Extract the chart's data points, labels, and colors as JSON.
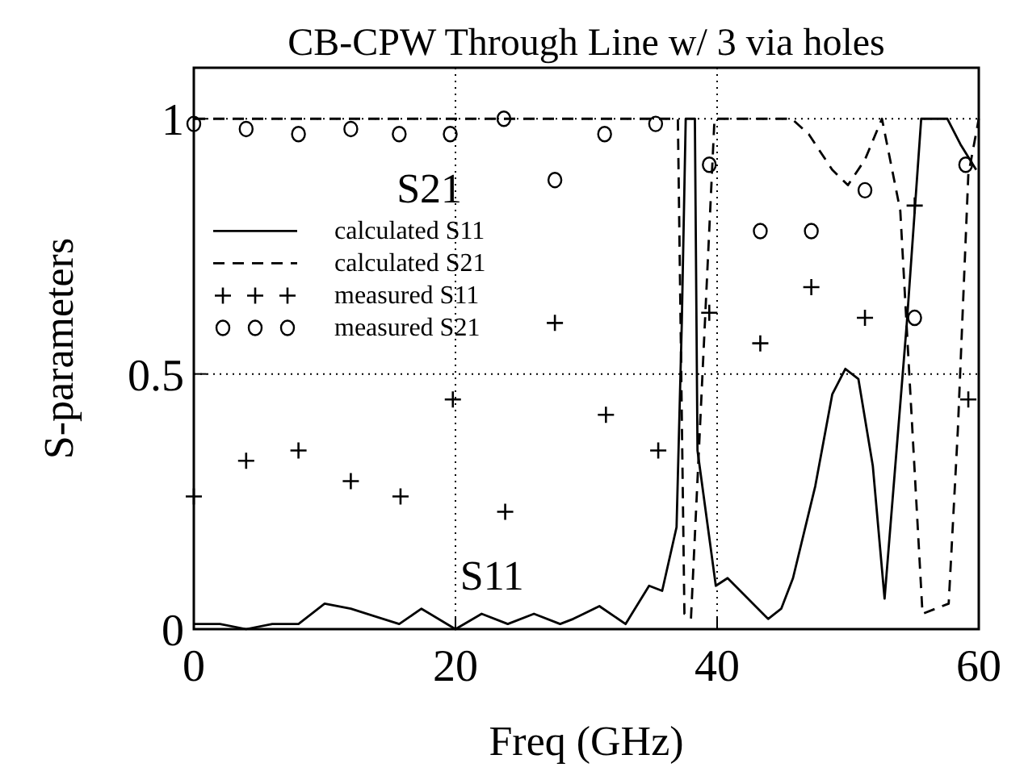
{
  "chart_data": {
    "type": "line",
    "title": "CB-CPW Through Line w/ 3 via holes",
    "xlabel": "Freq (GHz)",
    "ylabel": "S-parameters",
    "xlim": [
      0,
      60
    ],
    "ylim": [
      0,
      1.1
    ],
    "xticks": [
      0,
      20,
      40,
      60
    ],
    "yticks": [
      0,
      0.5,
      1
    ],
    "grid": true,
    "legend": "top left",
    "annotations": [
      "S21",
      "S11"
    ],
    "series": [
      {
        "name": "calculated S11",
        "color": "#000000",
        "line_style": "solid",
        "marker": "none",
        "x": [
          0,
          2,
          4,
          6,
          8,
          10,
          12,
          15.7,
          17.4,
          20,
          22,
          24,
          26,
          28,
          29,
          31,
          33,
          34.8,
          35.8,
          36.9,
          37.3,
          37.6,
          38.3,
          38.5,
          39.9,
          40.8,
          43.9,
          44.9,
          45.8,
          47.5,
          48.8,
          49.8,
          50.8,
          51.9,
          52.8,
          54.5,
          55.6,
          57.6,
          58.6,
          59.8
        ],
        "values": [
          0.01,
          0.01,
          0.0,
          0.01,
          0.01,
          0.05,
          0.04,
          0.01,
          0.04,
          0.0,
          0.03,
          0.01,
          0.03,
          0.01,
          0.02,
          0.045,
          0.01,
          0.085,
          0.075,
          0.2,
          0.6,
          1.0,
          1.0,
          0.35,
          0.085,
          0.1,
          0.02,
          0.04,
          0.1,
          0.28,
          0.46,
          0.51,
          0.49,
          0.32,
          0.06,
          0.6,
          1.0,
          1.0,
          0.95,
          0.9
        ]
      },
      {
        "name": "calculated S21",
        "color": "#000000",
        "line_style": "dashed",
        "marker": "none",
        "x": [
          0,
          37.0,
          37.5,
          38.0,
          39.8,
          45.7,
          47,
          48.8,
          50,
          51.3,
          52.6,
          54,
          55.7,
          56.7,
          57.7,
          58.4,
          59.2,
          60
        ],
        "values": [
          1.0,
          1.0,
          0.03,
          0.02,
          1.0,
          1.0,
          0.97,
          0.9,
          0.87,
          0.92,
          1.0,
          0.82,
          0.03,
          0.04,
          0.05,
          0.39,
          0.89,
          1.0
        ]
      },
      {
        "name": "measured S11",
        "type": "scatter",
        "color": "#000000",
        "marker": "cross",
        "x": [
          0,
          4,
          8,
          12,
          15.8,
          19.8,
          23.8,
          27.6,
          31.5,
          35.5,
          39.4,
          43.3,
          47.2,
          51.3,
          55.1,
          59.2
        ],
        "values": [
          0.26,
          0.33,
          0.35,
          0.29,
          0.26,
          0.45,
          0.23,
          0.6,
          0.42,
          0.35,
          0.62,
          0.56,
          0.67,
          0.61,
          0.83,
          0.45
        ]
      },
      {
        "name": "measured S21",
        "type": "scatter",
        "color": "#000000",
        "marker": "circle",
        "x": [
          0,
          4,
          8,
          12,
          15.7,
          19.6,
          23.7,
          27.6,
          31.4,
          35.3,
          39.4,
          43.3,
          47.2,
          51.3,
          55.1,
          59.0
        ],
        "values": [
          0.99,
          0.98,
          0.97,
          0.98,
          0.97,
          0.97,
          1.0,
          0.88,
          0.97,
          0.99,
          0.91,
          0.78,
          0.78,
          0.86,
          0.61,
          0.91
        ]
      }
    ]
  }
}
